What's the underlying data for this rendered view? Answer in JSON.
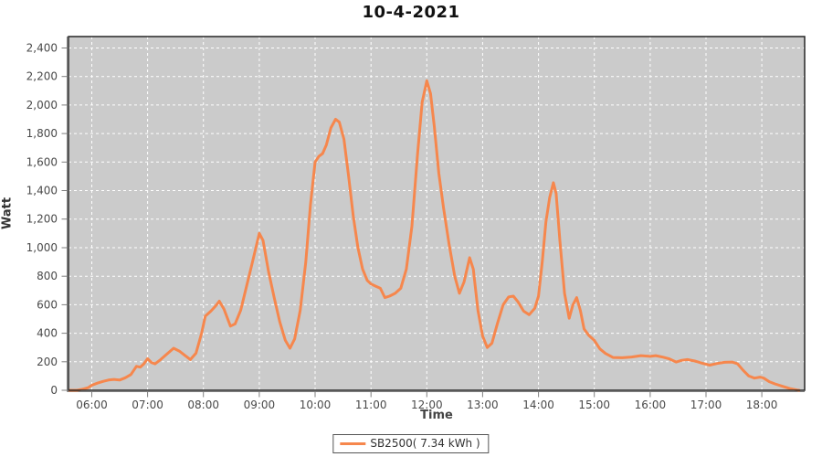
{
  "title": "10-4-2021",
  "legend": {
    "label": "SB2500( 7.34 kWh )",
    "swatch_color": "#f6874d"
  },
  "chart_data": {
    "type": "line",
    "title": "10-4-2021",
    "xlabel": "Time",
    "ylabel": "Watt",
    "legend_position": "bottom-center",
    "grid": true,
    "plot_bg": "#cbcbcb",
    "grid_color": "#ffffff",
    "axis_color": "#7f7f7f",
    "border_color": "#262626",
    "tick_label_color": "#4a4a4a",
    "x_ticks": [
      "06:00",
      "07:00",
      "08:00",
      "09:00",
      "10:00",
      "11:00",
      "12:00",
      "13:00",
      "14:00",
      "15:00",
      "16:00",
      "17:00",
      "18:00"
    ],
    "y_ticks": [
      0,
      200,
      400,
      600,
      800,
      1000,
      1200,
      1400,
      1600,
      1800,
      2000,
      2200,
      2400
    ],
    "y_tick_labels": [
      "0",
      "200",
      "400",
      "600",
      "800",
      "1,000",
      "1,200",
      "1,400",
      "1,600",
      "1,800",
      "2,000",
      "2,200",
      "2,400"
    ],
    "xlim": [
      "05:35",
      "18:46"
    ],
    "ylim": [
      0,
      2480
    ],
    "series": [
      {
        "name": "SB2500( 7.34 kWh )",
        "color": "#f6874d",
        "points": [
          [
            "05:36",
            0
          ],
          [
            "05:44",
            0
          ],
          [
            "05:50",
            8
          ],
          [
            "05:56",
            18
          ],
          [
            "06:00",
            35
          ],
          [
            "06:06",
            50
          ],
          [
            "06:12",
            62
          ],
          [
            "06:18",
            72
          ],
          [
            "06:24",
            76
          ],
          [
            "06:30",
            72
          ],
          [
            "06:36",
            88
          ],
          [
            "06:42",
            110
          ],
          [
            "06:48",
            168
          ],
          [
            "06:52",
            162
          ],
          [
            "06:56",
            185
          ],
          [
            "07:00",
            222
          ],
          [
            "07:04",
            195
          ],
          [
            "07:08",
            185
          ],
          [
            "07:14",
            215
          ],
          [
            "07:20",
            250
          ],
          [
            "07:28",
            295
          ],
          [
            "07:34",
            275
          ],
          [
            "07:40",
            245
          ],
          [
            "07:46",
            215
          ],
          [
            "07:52",
            260
          ],
          [
            "07:58",
            400
          ],
          [
            "08:02",
            520
          ],
          [
            "08:08",
            555
          ],
          [
            "08:13",
            590
          ],
          [
            "08:17",
            625
          ],
          [
            "08:22",
            570
          ],
          [
            "08:29",
            450
          ],
          [
            "08:34",
            465
          ],
          [
            "08:40",
            560
          ],
          [
            "08:46",
            720
          ],
          [
            "08:52",
            880
          ],
          [
            "09:00",
            1100
          ],
          [
            "09:04",
            1050
          ],
          [
            "09:10",
            830
          ],
          [
            "09:16",
            650
          ],
          [
            "09:22",
            480
          ],
          [
            "09:28",
            350
          ],
          [
            "09:33",
            295
          ],
          [
            "09:38",
            360
          ],
          [
            "09:44",
            560
          ],
          [
            "09:50",
            900
          ],
          [
            "09:55",
            1300
          ],
          [
            "10:00",
            1600
          ],
          [
            "10:04",
            1640
          ],
          [
            "10:08",
            1660
          ],
          [
            "10:12",
            1720
          ],
          [
            "10:17",
            1840
          ],
          [
            "10:22",
            1900
          ],
          [
            "10:26",
            1880
          ],
          [
            "10:31",
            1760
          ],
          [
            "10:36",
            1500
          ],
          [
            "10:41",
            1220
          ],
          [
            "10:46",
            1000
          ],
          [
            "10:51",
            850
          ],
          [
            "10:56",
            770
          ],
          [
            "11:00",
            745
          ],
          [
            "11:05",
            730
          ],
          [
            "11:10",
            715
          ],
          [
            "11:15",
            650
          ],
          [
            "11:20",
            660
          ],
          [
            "11:26",
            680
          ],
          [
            "11:32",
            715
          ],
          [
            "11:38",
            850
          ],
          [
            "11:44",
            1150
          ],
          [
            "11:50",
            1650
          ],
          [
            "11:55",
            2020
          ],
          [
            "12:00",
            2170
          ],
          [
            "12:04",
            2080
          ],
          [
            "12:08",
            1850
          ],
          [
            "12:13",
            1520
          ],
          [
            "12:18",
            1280
          ],
          [
            "12:24",
            1020
          ],
          [
            "12:30",
            800
          ],
          [
            "12:35",
            680
          ],
          [
            "12:40",
            760
          ],
          [
            "12:46",
            930
          ],
          [
            "12:50",
            850
          ],
          [
            "12:55",
            560
          ],
          [
            "13:00",
            380
          ],
          [
            "13:05",
            300
          ],
          [
            "13:10",
            330
          ],
          [
            "13:16",
            470
          ],
          [
            "13:22",
            600
          ],
          [
            "13:28",
            655
          ],
          [
            "13:33",
            660
          ],
          [
            "13:38",
            620
          ],
          [
            "13:44",
            555
          ],
          [
            "13:50",
            530
          ],
          [
            "13:56",
            575
          ],
          [
            "14:00",
            660
          ],
          [
            "14:04",
            900
          ],
          [
            "14:08",
            1180
          ],
          [
            "14:12",
            1350
          ],
          [
            "14:16",
            1455
          ],
          [
            "14:19",
            1380
          ],
          [
            "14:23",
            1050
          ],
          [
            "14:28",
            680
          ],
          [
            "14:33",
            505
          ],
          [
            "14:37",
            600
          ],
          [
            "14:41",
            650
          ],
          [
            "14:45",
            560
          ],
          [
            "14:49",
            430
          ],
          [
            "14:54",
            385
          ],
          [
            "15:00",
            350
          ],
          [
            "15:06",
            290
          ],
          [
            "15:12",
            258
          ],
          [
            "15:20",
            230
          ],
          [
            "15:30",
            228
          ],
          [
            "15:40",
            233
          ],
          [
            "15:50",
            243
          ],
          [
            "16:00",
            238
          ],
          [
            "16:06",
            243
          ],
          [
            "16:14",
            232
          ],
          [
            "16:20",
            222
          ],
          [
            "16:28",
            198
          ],
          [
            "16:34",
            210
          ],
          [
            "16:40",
            215
          ],
          [
            "16:48",
            205
          ],
          [
            "16:56",
            190
          ],
          [
            "17:04",
            176
          ],
          [
            "17:12",
            188
          ],
          [
            "17:20",
            196
          ],
          [
            "17:28",
            198
          ],
          [
            "17:34",
            185
          ],
          [
            "17:40",
            140
          ],
          [
            "17:46",
            100
          ],
          [
            "17:52",
            85
          ],
          [
            "17:58",
            92
          ],
          [
            "18:02",
            85
          ],
          [
            "18:08",
            60
          ],
          [
            "18:14",
            45
          ],
          [
            "18:22",
            28
          ],
          [
            "18:30",
            12
          ],
          [
            "18:38",
            2
          ],
          [
            "18:40",
            0
          ]
        ]
      }
    ]
  }
}
